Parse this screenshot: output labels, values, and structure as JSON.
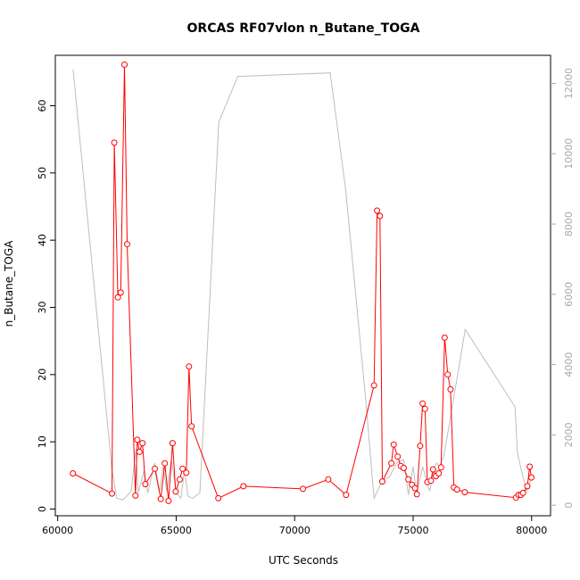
{
  "chart_data": {
    "type": "line",
    "title": "ORCAS RF07vlon n_Butane_TOGA",
    "xlabel": "UTC Seconds",
    "ylabel": "n_Butane_TOGA",
    "xlim": [
      59900,
      80800
    ],
    "ylim": [
      -1.0,
      67.5
    ],
    "y2lim": [
      -300,
      12800
    ],
    "x_ticks": [
      60000,
      65000,
      70000,
      75000,
      80000
    ],
    "y_ticks": [
      0,
      10,
      20,
      30,
      40,
      50,
      60
    ],
    "y2_ticks": [
      0,
      2000,
      4000,
      6000,
      8000,
      10000,
      12000
    ],
    "grid": false,
    "series": [
      {
        "color": "#ff0000",
        "style": "line+points",
        "x": [
          60640,
          62290,
          62390,
          62540,
          62660,
          62820,
          62930,
          63280,
          63360,
          63450,
          63580,
          63700,
          64100,
          64350,
          64520,
          64680,
          64850,
          64980,
          65150,
          65270,
          65430,
          65540,
          65650,
          66780,
          67840,
          70350,
          71420,
          72170,
          73350,
          73480,
          73600,
          73700,
          74080,
          74180,
          74350,
          74480,
          74600,
          74800,
          74950,
          75080,
          75160,
          75300,
          75400,
          75500,
          75600,
          75750,
          75840,
          75960,
          76080,
          76180,
          76330,
          76460,
          76580,
          76720,
          76850,
          77180,
          79340,
          79450,
          79550,
          79640,
          79820,
          79920,
          79990
        ],
        "y": [
          5.3,
          2.3,
          54.5,
          31.5,
          32.2,
          66.1,
          39.4,
          2.0,
          10.3,
          8.5,
          9.8,
          3.7,
          6.0,
          1.5,
          6.8,
          1.2,
          9.8,
          2.6,
          4.4,
          6.0,
          5.4,
          21.2,
          12.3,
          1.6,
          3.4,
          3.0,
          4.4,
          2.1,
          18.4,
          44.4,
          43.6,
          4.1,
          6.8,
          9.6,
          7.8,
          6.4,
          6.1,
          4.4,
          3.6,
          3.1,
          2.2,
          9.4,
          15.7,
          14.9,
          4.0,
          4.2,
          5.9,
          4.9,
          5.3,
          6.2,
          25.5,
          20.0,
          17.8,
          3.2,
          2.9,
          2.5,
          1.7,
          2.1,
          2.1,
          2.4,
          3.4,
          6.3,
          4.7
        ]
      },
      {
        "color": "#bebebe",
        "style": "line",
        "axis": "right",
        "x": [
          60650,
          62290,
          62500,
          62750,
          62900,
          63100,
          63300,
          63400,
          63650,
          63800,
          64100,
          64300,
          64450,
          64600,
          64800,
          65000,
          65200,
          65350,
          65500,
          65700,
          66000,
          66800,
          67600,
          71500,
          72150,
          73000,
          73250,
          73350,
          73700,
          74000,
          74300,
          74600,
          74800,
          75000,
          75150,
          75400,
          75700,
          75900,
          76000,
          76100,
          76300,
          77200,
          79300,
          79400,
          79600,
          79800,
          80000
        ],
        "y": [
          12400,
          1000,
          200,
          150,
          250,
          400,
          1600,
          350,
          1000,
          350,
          1200,
          400,
          1100,
          400,
          1300,
          350,
          200,
          1000,
          250,
          200,
          350,
          10900,
          12200,
          12300,
          9000,
          3000,
          1000,
          200,
          700,
          800,
          1200,
          1300,
          300,
          1100,
          300,
          1100,
          400,
          1100,
          1200,
          1100,
          1400,
          5000,
          2800,
          1500,
          900,
          400,
          800
        ]
      }
    ]
  }
}
